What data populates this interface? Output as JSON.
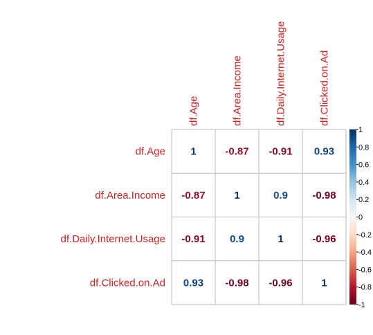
{
  "chart_data": {
    "type": "heatmap",
    "variables": [
      "df.Age",
      "df.Area.Income",
      "df.Daily.Internet.Usage",
      "df.Clicked.on.Ad"
    ],
    "matrix": [
      [
        1,
        -0.87,
        -0.91,
        0.93
      ],
      [
        -0.87,
        1,
        0.9,
        -0.98
      ],
      [
        -0.91,
        0.9,
        1,
        -0.96
      ],
      [
        0.93,
        -0.98,
        -0.96,
        1
      ]
    ],
    "cell_labels": [
      [
        "1",
        "-0.87",
        "-0.91",
        "0.93"
      ],
      [
        "-0.87",
        "1",
        "0.9",
        "-0.98"
      ],
      [
        "-0.91",
        "0.9",
        "1",
        "-0.96"
      ],
      [
        "0.93",
        "-0.98",
        "-0.96",
        "1"
      ]
    ],
    "colorbar": {
      "range": [
        -1,
        1
      ],
      "ticks": [
        "1",
        "0.8",
        "0.6",
        "0.4",
        "0.2",
        "0",
        "-0.2",
        "-0.4",
        "-0.6",
        "-0.8",
        "-1"
      ],
      "placement": "right"
    },
    "colors": {
      "label": "#cc2222",
      "positive": "#053061",
      "negative": "#67001f",
      "grid": "#bbbbbb",
      "cell_bg": "#ffffff"
    }
  }
}
